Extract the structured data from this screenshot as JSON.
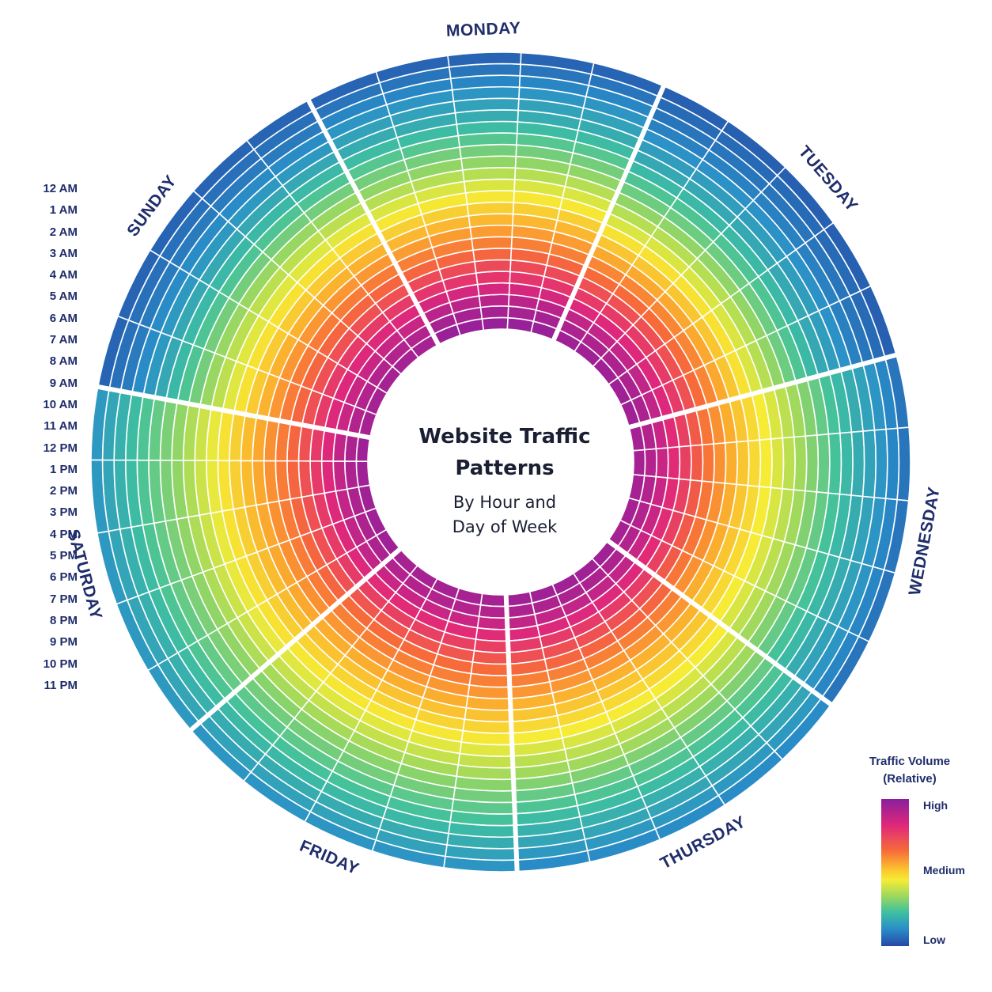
{
  "chart_data": {
    "type": "heatmap",
    "layout": "radial",
    "title": "Website Traffic Patterns",
    "subtitle": "By Hour and Day of Week",
    "days": [
      "MONDAY",
      "TUESDAY",
      "WEDNESDAY",
      "THURSDAY",
      "FRIDAY",
      "SATURDAY",
      "SUNDAY"
    ],
    "hours": [
      "12 AM",
      "1 AM",
      "2 AM",
      "3 AM",
      "4 AM",
      "5 AM",
      "6 AM",
      "7 AM",
      "8 AM",
      "9 AM",
      "10 AM",
      "11 AM",
      "12 PM",
      "1 PM",
      "2 PM",
      "3 PM",
      "4 PM",
      "5 PM",
      "6 PM",
      "7 PM",
      "8 PM",
      "9 PM",
      "10 PM",
      "11 PM"
    ],
    "ring_order": "12 AM innermost ring to 11 PM outermost ring",
    "values_relative": {
      "MONDAY": [
        0.98,
        0.96,
        0.93,
        0.89,
        0.85,
        0.81,
        0.76,
        0.71,
        0.66,
        0.61,
        0.56,
        0.51,
        0.46,
        0.41,
        0.36,
        0.32,
        0.28,
        0.24,
        0.2,
        0.17,
        0.14,
        0.11,
        0.08,
        0.05
      ],
      "TUESDAY": [
        0.97,
        0.95,
        0.92,
        0.88,
        0.84,
        0.8,
        0.75,
        0.7,
        0.64,
        0.58,
        0.52,
        0.46,
        0.41,
        0.36,
        0.31,
        0.27,
        0.23,
        0.19,
        0.16,
        0.13,
        0.1,
        0.08,
        0.06,
        0.04
      ],
      "WEDNESDAY": [
        0.96,
        0.94,
        0.91,
        0.87,
        0.83,
        0.78,
        0.73,
        0.68,
        0.63,
        0.58,
        0.54,
        0.5,
        0.46,
        0.42,
        0.38,
        0.34,
        0.3,
        0.26,
        0.23,
        0.2,
        0.17,
        0.14,
        0.11,
        0.08
      ],
      "THURSDAY": [
        0.97,
        0.95,
        0.92,
        0.88,
        0.84,
        0.8,
        0.76,
        0.71,
        0.67,
        0.62,
        0.58,
        0.54,
        0.5,
        0.46,
        0.42,
        0.38,
        0.34,
        0.3,
        0.27,
        0.24,
        0.21,
        0.18,
        0.15,
        0.12
      ],
      "FRIDAY": [
        0.96,
        0.94,
        0.91,
        0.87,
        0.83,
        0.79,
        0.75,
        0.71,
        0.67,
        0.63,
        0.59,
        0.55,
        0.51,
        0.47,
        0.43,
        0.39,
        0.35,
        0.32,
        0.29,
        0.26,
        0.23,
        0.2,
        0.17,
        0.14
      ],
      "SATURDAY": [
        0.97,
        0.95,
        0.92,
        0.88,
        0.84,
        0.8,
        0.76,
        0.72,
        0.68,
        0.64,
        0.6,
        0.56,
        0.52,
        0.48,
        0.44,
        0.4,
        0.36,
        0.33,
        0.3,
        0.27,
        0.24,
        0.21,
        0.18,
        0.15
      ],
      "SUNDAY": [
        0.96,
        0.94,
        0.91,
        0.88,
        0.84,
        0.8,
        0.76,
        0.72,
        0.67,
        0.62,
        0.57,
        0.52,
        0.47,
        0.42,
        0.37,
        0.32,
        0.27,
        0.23,
        0.19,
        0.15,
        0.12,
        0.09,
        0.07,
        0.05
      ]
    },
    "colorscale": [
      "#2548a6",
      "#2a8fc8",
      "#3fc0a0",
      "#9cd85e",
      "#f6ec35",
      "#fbb02e",
      "#f76a3a",
      "#e0287a",
      "#8a1f9e"
    ],
    "legend": {
      "title": "Traffic Volume (Relative)",
      "labels": [
        "High",
        "Medium",
        "Low"
      ],
      "placement": "bottom-right"
    }
  }
}
